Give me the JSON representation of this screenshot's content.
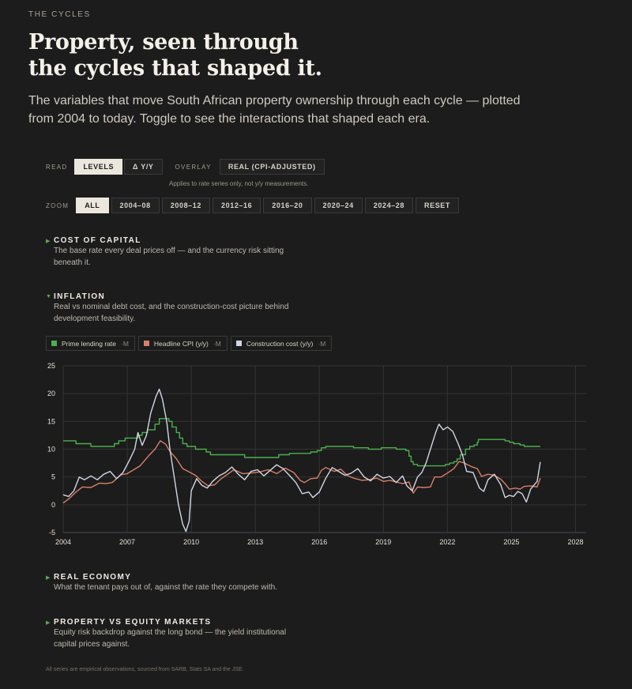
{
  "header": {
    "eyebrow": "THE CYCLES",
    "title_line1": "Property, seen through",
    "title_line2": "the cycles that shaped it.",
    "subtitle": "The variables that move South African property ownership through each cycle — plotted from 2004 to today. Toggle to see the interactions that shaped each era."
  },
  "controls": {
    "read_label": "READ",
    "read_options": [
      "LEVELS",
      "Δ Y/Y"
    ],
    "read_selected": "LEVELS",
    "overlay_label": "OVERLAY",
    "overlay_option": "REAL (CPI-ADJUSTED)",
    "overlay_note": "Applies to rate series only, not y/y measurements.",
    "zoom_label": "ZOOM",
    "zoom_options": [
      "ALL",
      "2004–08",
      "2008–12",
      "2012–16",
      "2016–20",
      "2020–24",
      "2024–28",
      "RESET"
    ],
    "zoom_selected": "ALL"
  },
  "sections": [
    {
      "title": "COST OF CAPITAL",
      "desc_line1": "The base rate every deal prices off — and the currency risk sitting",
      "desc_line2": "beneath it.",
      "expanded": false
    },
    {
      "title": "INFLATION",
      "desc_line1": "Real vs nominal debt cost, and the construction-cost picture behind",
      "desc_line2": "development feasibility.",
      "expanded": true
    },
    {
      "title": "REAL ECONOMY",
      "desc_line1": "What the tenant pays out of, against the rate they compete with.",
      "desc_line2": "",
      "expanded": false
    },
    {
      "title": "PROPERTY VS EQUITY MARKETS",
      "desc_line1": "Equity risk backdrop against the long bond — the yield institutional",
      "desc_line2": "capital prices against.",
      "expanded": false
    }
  ],
  "footnote": "All series are empirical observations, sourced from SARB, Stats SA and the JSE.",
  "chart_data": {
    "type": "line",
    "xlim": [
      2004,
      2028.5
    ],
    "ylim": [
      -5,
      25
    ],
    "x_ticks": [
      2004,
      2007,
      2010,
      2013,
      2016,
      2019,
      2022,
      2025,
      2028
    ],
    "y_ticks": [
      -5,
      0,
      5,
      10,
      15,
      20,
      25
    ],
    "grid": true,
    "legend_position": "top-left",
    "series": [
      {
        "name": "Prime lending rate",
        "frequency": "M",
        "color": "#4caf50",
        "step": true,
        "points": [
          [
            2004,
            11.5
          ],
          [
            2004.6,
            11.0
          ],
          [
            2005.3,
            10.5
          ],
          [
            2006.4,
            11.0
          ],
          [
            2006.6,
            11.5
          ],
          [
            2006.9,
            12.0
          ],
          [
            2007.5,
            12.5
          ],
          [
            2007.7,
            13.0
          ],
          [
            2007.95,
            13.5
          ],
          [
            2008.3,
            14.5
          ],
          [
            2008.5,
            15.5
          ],
          [
            2008.95,
            15.0
          ],
          [
            2009.1,
            14.0
          ],
          [
            2009.3,
            13.0
          ],
          [
            2009.45,
            12.0
          ],
          [
            2009.6,
            11.0
          ],
          [
            2009.8,
            10.5
          ],
          [
            2010.2,
            10.0
          ],
          [
            2010.7,
            9.5
          ],
          [
            2010.9,
            9.0
          ],
          [
            2012.5,
            8.5
          ],
          [
            2014.1,
            9.0
          ],
          [
            2014.6,
            9.25
          ],
          [
            2015.6,
            9.5
          ],
          [
            2015.9,
            9.75
          ],
          [
            2016.1,
            10.25
          ],
          [
            2016.3,
            10.5
          ],
          [
            2017.6,
            10.25
          ],
          [
            2018.3,
            10.0
          ],
          [
            2018.9,
            10.25
          ],
          [
            2019.6,
            10.0
          ],
          [
            2020.05,
            9.75
          ],
          [
            2020.2,
            8.75
          ],
          [
            2020.3,
            7.75
          ],
          [
            2020.4,
            7.25
          ],
          [
            2020.6,
            7.0
          ],
          [
            2021.9,
            7.25
          ],
          [
            2022.1,
            7.5
          ],
          [
            2022.3,
            7.75
          ],
          [
            2022.45,
            8.25
          ],
          [
            2022.6,
            9.0
          ],
          [
            2022.85,
            10.0
          ],
          [
            2023.05,
            10.5
          ],
          [
            2023.25,
            10.75
          ],
          [
            2023.4,
            11.25
          ],
          [
            2023.45,
            11.75
          ],
          [
            2024.7,
            11.5
          ],
          [
            2024.9,
            11.25
          ],
          [
            2025.1,
            11.0
          ],
          [
            2025.4,
            10.75
          ],
          [
            2025.6,
            10.5
          ],
          [
            2026.2,
            10.5
          ],
          [
            2026.35,
            10.5
          ]
        ]
      },
      {
        "name": "Headline CPI (y/y)",
        "frequency": "M",
        "color": "#d8806a",
        "step": false,
        "points": [
          [
            2004,
            0.3
          ],
          [
            2004.3,
            1.2
          ],
          [
            2004.6,
            2.3
          ],
          [
            2004.9,
            3.2
          ],
          [
            2005.3,
            3.1
          ],
          [
            2005.7,
            3.9
          ],
          [
            2006.0,
            3.8
          ],
          [
            2006.3,
            4.0
          ],
          [
            2006.7,
            5.4
          ],
          [
            2007.0,
            5.6
          ],
          [
            2007.3,
            6.3
          ],
          [
            2007.6,
            7.0
          ],
          [
            2008.0,
            8.8
          ],
          [
            2008.3,
            10.0
          ],
          [
            2008.55,
            11.5
          ],
          [
            2008.8,
            10.9
          ],
          [
            2009.0,
            9.6
          ],
          [
            2009.3,
            8.3
          ],
          [
            2009.6,
            6.5
          ],
          [
            2009.9,
            5.9
          ],
          [
            2010.2,
            5.3
          ],
          [
            2010.5,
            4.2
          ],
          [
            2010.8,
            3.4
          ],
          [
            2011.1,
            3.6
          ],
          [
            2011.4,
            4.7
          ],
          [
            2011.7,
            5.5
          ],
          [
            2012.0,
            6.3
          ],
          [
            2012.4,
            5.6
          ],
          [
            2012.8,
            5.7
          ],
          [
            2013.2,
            5.9
          ],
          [
            2013.6,
            6.3
          ],
          [
            2014.0,
            5.6
          ],
          [
            2014.4,
            6.6
          ],
          [
            2014.8,
            5.8
          ],
          [
            2015.1,
            4.4
          ],
          [
            2015.3,
            4.0
          ],
          [
            2015.6,
            4.7
          ],
          [
            2015.9,
            4.8
          ],
          [
            2016.1,
            6.2
          ],
          [
            2016.3,
            6.7
          ],
          [
            2016.7,
            6.0
          ],
          [
            2017.0,
            6.4
          ],
          [
            2017.3,
            5.3
          ],
          [
            2017.6,
            4.8
          ],
          [
            2018.0,
            4.4
          ],
          [
            2018.3,
            4.5
          ],
          [
            2018.7,
            4.8
          ],
          [
            2019.0,
            4.2
          ],
          [
            2019.3,
            4.4
          ],
          [
            2019.6,
            4.1
          ],
          [
            2019.9,
            3.8
          ],
          [
            2020.2,
            4.1
          ],
          [
            2020.4,
            2.1
          ],
          [
            2020.6,
            3.2
          ],
          [
            2020.9,
            3.1
          ],
          [
            2021.2,
            3.2
          ],
          [
            2021.4,
            5.0
          ],
          [
            2021.7,
            5.0
          ],
          [
            2022.0,
            5.7
          ],
          [
            2022.3,
            6.5
          ],
          [
            2022.55,
            7.8
          ],
          [
            2022.8,
            7.5
          ],
          [
            2023.1,
            6.9
          ],
          [
            2023.4,
            6.5
          ],
          [
            2023.6,
            5.1
          ],
          [
            2023.9,
            5.5
          ],
          [
            2024.2,
            5.3
          ],
          [
            2024.5,
            4.6
          ],
          [
            2024.7,
            3.8
          ],
          [
            2024.9,
            2.8
          ],
          [
            2025.2,
            3.0
          ],
          [
            2025.4,
            2.8
          ],
          [
            2025.6,
            3.3
          ],
          [
            2025.9,
            3.4
          ],
          [
            2026.2,
            3.2
          ],
          [
            2026.35,
            4.8
          ]
        ]
      },
      {
        "name": "Construction cost (y/y)",
        "frequency": "M",
        "color": "#d3d7e4",
        "step": false,
        "points": [
          [
            2004,
            1.8
          ],
          [
            2004.25,
            1.5
          ],
          [
            2004.5,
            2.5
          ],
          [
            2004.75,
            5.0
          ],
          [
            2005.0,
            4.5
          ],
          [
            2005.3,
            5.2
          ],
          [
            2005.6,
            4.5
          ],
          [
            2005.9,
            5.5
          ],
          [
            2006.2,
            6.0
          ],
          [
            2006.5,
            4.7
          ],
          [
            2006.8,
            5.8
          ],
          [
            2007.1,
            8.0
          ],
          [
            2007.35,
            10.0
          ],
          [
            2007.5,
            13.0
          ],
          [
            2007.7,
            10.7
          ],
          [
            2007.9,
            12.5
          ],
          [
            2008.1,
            16.5
          ],
          [
            2008.35,
            19.5
          ],
          [
            2008.5,
            20.8
          ],
          [
            2008.65,
            19.0
          ],
          [
            2008.85,
            15.0
          ],
          [
            2009.0,
            10.0
          ],
          [
            2009.2,
            5.0
          ],
          [
            2009.4,
            0.0
          ],
          [
            2009.6,
            -3.5
          ],
          [
            2009.75,
            -4.8
          ],
          [
            2009.9,
            -3.0
          ],
          [
            2010.0,
            2.5
          ],
          [
            2010.25,
            4.7
          ],
          [
            2010.5,
            3.5
          ],
          [
            2010.75,
            3.0
          ],
          [
            2011.0,
            4.2
          ],
          [
            2011.3,
            5.2
          ],
          [
            2011.6,
            5.8
          ],
          [
            2011.9,
            6.8
          ],
          [
            2012.2,
            5.5
          ],
          [
            2012.5,
            4.5
          ],
          [
            2012.8,
            6.0
          ],
          [
            2013.1,
            6.3
          ],
          [
            2013.4,
            5.2
          ],
          [
            2013.7,
            6.2
          ],
          [
            2014.0,
            7.2
          ],
          [
            2014.3,
            6.5
          ],
          [
            2014.6,
            5.3
          ],
          [
            2014.9,
            4.0
          ],
          [
            2015.2,
            2.0
          ],
          [
            2015.5,
            2.3
          ],
          [
            2015.7,
            1.3
          ],
          [
            2016.0,
            2.3
          ],
          [
            2016.3,
            4.8
          ],
          [
            2016.6,
            6.7
          ],
          [
            2016.9,
            6.0
          ],
          [
            2017.2,
            5.3
          ],
          [
            2017.5,
            5.7
          ],
          [
            2017.8,
            6.5
          ],
          [
            2018.1,
            5.0
          ],
          [
            2018.4,
            4.3
          ],
          [
            2018.7,
            5.5
          ],
          [
            2019.0,
            4.8
          ],
          [
            2019.3,
            5.1
          ],
          [
            2019.6,
            4.0
          ],
          [
            2019.9,
            5.2
          ],
          [
            2020.1,
            3.4
          ],
          [
            2020.35,
            2.5
          ],
          [
            2020.6,
            5.0
          ],
          [
            2020.8,
            5.8
          ],
          [
            2021.0,
            7.5
          ],
          [
            2021.2,
            10.0
          ],
          [
            2021.45,
            13.0
          ],
          [
            2021.6,
            14.5
          ],
          [
            2021.8,
            13.5
          ],
          [
            2022.0,
            14.0
          ],
          [
            2022.25,
            13.2
          ],
          [
            2022.5,
            11.0
          ],
          [
            2022.7,
            9.0
          ],
          [
            2022.9,
            6.0
          ],
          [
            2023.2,
            5.8
          ],
          [
            2023.5,
            3.0
          ],
          [
            2023.7,
            2.4
          ],
          [
            2023.9,
            4.5
          ],
          [
            2024.2,
            5.5
          ],
          [
            2024.5,
            3.6
          ],
          [
            2024.7,
            1.3
          ],
          [
            2024.9,
            1.7
          ],
          [
            2025.1,
            1.5
          ],
          [
            2025.3,
            2.4
          ],
          [
            2025.5,
            2.0
          ],
          [
            2025.7,
            0.5
          ],
          [
            2025.9,
            2.8
          ],
          [
            2026.05,
            3.5
          ],
          [
            2026.2,
            4.2
          ],
          [
            2026.3,
            6.5
          ],
          [
            2026.35,
            7.7
          ]
        ]
      }
    ]
  }
}
